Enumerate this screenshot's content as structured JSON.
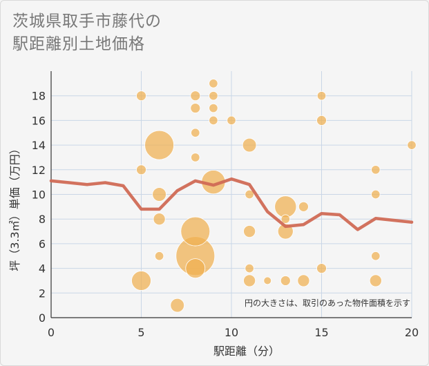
{
  "chart_data": {
    "type": "scatter",
    "title_lines": [
      "茨城県取手市藤代の",
      "駅距離別土地価格"
    ],
    "xlabel": "駅距離（分）",
    "ylabel": "坪（3.3㎡）単価（万円）",
    "xlim": [
      0,
      20
    ],
    "ylim": [
      0,
      20
    ],
    "x_ticks": [
      0,
      5,
      10,
      15,
      20
    ],
    "y_ticks": [
      0,
      2,
      4,
      6,
      8,
      10,
      12,
      14,
      16,
      18
    ],
    "grid": true,
    "note": "円の大きさは、取引のあった物件面積を示す",
    "colors": {
      "bubble": "#f0b050",
      "line": "#d06a55",
      "grid": "#c9d6e6"
    },
    "points": [
      {
        "x": 5,
        "y": 18,
        "size": 1
      },
      {
        "x": 5,
        "y": 12,
        "size": 1
      },
      {
        "x": 5,
        "y": 3,
        "size": 4
      },
      {
        "x": 6,
        "y": 14,
        "size": 9
      },
      {
        "x": 6,
        "y": 10,
        "size": 2
      },
      {
        "x": 6,
        "y": 8,
        "size": 1.5
      },
      {
        "x": 6,
        "y": 5,
        "size": 0.8
      },
      {
        "x": 7,
        "y": 1,
        "size": 2
      },
      {
        "x": 8,
        "y": 18,
        "size": 1
      },
      {
        "x": 8,
        "y": 17,
        "size": 1
      },
      {
        "x": 8,
        "y": 15,
        "size": 0.8
      },
      {
        "x": 8,
        "y": 13,
        "size": 0.8
      },
      {
        "x": 8,
        "y": 7,
        "size": 9
      },
      {
        "x": 8,
        "y": 5,
        "size": 16
      },
      {
        "x": 8,
        "y": 4,
        "size": 4
      },
      {
        "x": 9,
        "y": 19,
        "size": 0.8
      },
      {
        "x": 9,
        "y": 18,
        "size": 0.8
      },
      {
        "x": 9,
        "y": 17,
        "size": 0.8
      },
      {
        "x": 9,
        "y": 16,
        "size": 0.8
      },
      {
        "x": 9,
        "y": 11,
        "size": 6
      },
      {
        "x": 10,
        "y": 16,
        "size": 0.8
      },
      {
        "x": 11,
        "y": 14,
        "size": 2
      },
      {
        "x": 11,
        "y": 10,
        "size": 0.8
      },
      {
        "x": 11,
        "y": 7,
        "size": 1.5
      },
      {
        "x": 11,
        "y": 4,
        "size": 0.8
      },
      {
        "x": 11,
        "y": 3,
        "size": 1.5
      },
      {
        "x": 12,
        "y": 3,
        "size": 0.6
      },
      {
        "x": 13,
        "y": 9,
        "size": 5
      },
      {
        "x": 13,
        "y": 8,
        "size": 0.8
      },
      {
        "x": 13,
        "y": 7,
        "size": 2.5
      },
      {
        "x": 13,
        "y": 3,
        "size": 1
      },
      {
        "x": 14,
        "y": 9,
        "size": 1
      },
      {
        "x": 14,
        "y": 3,
        "size": 1.5
      },
      {
        "x": 15,
        "y": 18,
        "size": 0.8
      },
      {
        "x": 15,
        "y": 16,
        "size": 1
      },
      {
        "x": 15,
        "y": 4,
        "size": 1
      },
      {
        "x": 18,
        "y": 12,
        "size": 0.8
      },
      {
        "x": 18,
        "y": 10,
        "size": 0.8
      },
      {
        "x": 18,
        "y": 5,
        "size": 0.8
      },
      {
        "x": 18,
        "y": 3,
        "size": 1.5
      },
      {
        "x": 20,
        "y": 14,
        "size": 0.8
      }
    ],
    "trend": {
      "x": [
        0,
        1,
        2,
        3,
        4,
        5,
        6,
        7,
        8,
        9,
        10,
        11,
        12,
        13,
        14,
        15,
        16,
        17,
        18,
        19,
        20
      ],
      "y": [
        11.1,
        10.95,
        10.8,
        10.95,
        10.7,
        8.8,
        8.8,
        10.3,
        11.1,
        10.75,
        11.25,
        10.8,
        8.6,
        7.4,
        7.55,
        8.45,
        8.35,
        7.15,
        8.05,
        7.9,
        7.75
      ]
    }
  }
}
